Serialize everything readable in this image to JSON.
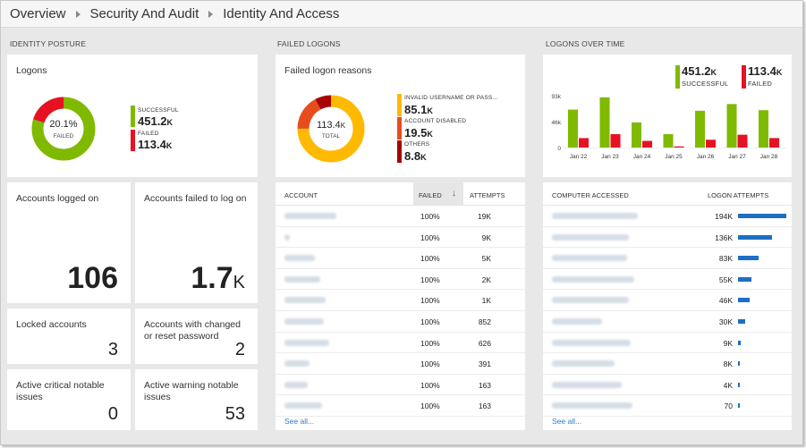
{
  "breadcrumb": [
    "Overview",
    "Security And Audit",
    "Identity And Access"
  ],
  "sections": {
    "identity": "IDENTITY POSTURE",
    "failed": "FAILED LOGONS",
    "overtime": "LOGONS OVER TIME"
  },
  "logons": {
    "title": "Logons",
    "center_value": "20.1%",
    "center_label": "FAILED",
    "successful_label": "SUCCESSFUL",
    "successful_value": "451.2",
    "successful_unit": "K",
    "failed_label": "FAILED",
    "failed_value": "113.4",
    "failed_unit": "K",
    "colors": {
      "successful": "#7fba00",
      "failed": "#e81123"
    },
    "failed_fraction": 0.201
  },
  "kpis": {
    "logged_on_title": "Accounts logged on",
    "logged_on_value": "106",
    "failed_log_on_title": "Accounts failed to log on",
    "failed_log_on_value": "1.7",
    "failed_log_on_unit": "K",
    "locked_title": "Locked accounts",
    "locked_value": "3",
    "changed_title": "Accounts with changed or reset password",
    "changed_value": "2",
    "critical_title": "Active critical notable issues",
    "critical_value": "0",
    "warning_title": "Active warning notable issues",
    "warning_value": "53"
  },
  "failed_reasons": {
    "title": "Failed logon reasons",
    "center_value": "113.4",
    "center_unit": "K",
    "center_label": "TOTAL",
    "items": [
      {
        "label": "INVALID USERNAME OR PASS...",
        "value": "85.1",
        "unit": "K",
        "color": "#ffb900",
        "amount": 85.1
      },
      {
        "label": "ACCOUNT DISABLED",
        "value": "19.5",
        "unit": "K",
        "color": "#e74c1c",
        "amount": 19.5
      },
      {
        "label": "OTHERS",
        "value": "8.8",
        "unit": "K",
        "color": "#a80000",
        "amount": 8.8
      }
    ]
  },
  "accounts_table": {
    "col_account": "ACCOUNT",
    "col_failed": "FAILED",
    "col_attempts": "ATTEMPTS",
    "rows": [
      {
        "failed": "100%",
        "attempts": "19K"
      },
      {
        "failed": "100%",
        "attempts": "9K"
      },
      {
        "failed": "100%",
        "attempts": "5K"
      },
      {
        "failed": "100%",
        "attempts": "2K"
      },
      {
        "failed": "100%",
        "attempts": "1K"
      },
      {
        "failed": "100%",
        "attempts": "852"
      },
      {
        "failed": "100%",
        "attempts": "626"
      },
      {
        "failed": "100%",
        "attempts": "391"
      },
      {
        "failed": "100%",
        "attempts": "163"
      },
      {
        "failed": "100%",
        "attempts": "163"
      }
    ],
    "see_all": "See all..."
  },
  "overtime": {
    "successful_value": "451.2",
    "successful_unit": "K",
    "successful_label": "SUCCESSFUL",
    "failed_value": "113.4",
    "failed_unit": "K",
    "failed_label": "FAILED"
  },
  "chart_data": {
    "type": "bar",
    "categories": [
      "Jan 22",
      "Jan 23",
      "Jan 24",
      "Jan 25",
      "Jan 26",
      "Jan 27",
      "Jan 28"
    ],
    "series": [
      {
        "name": "SUCCESSFUL",
        "color": "#7fba00",
        "values": [
          68,
          90,
          45,
          24,
          66,
          78,
          67
        ]
      },
      {
        "name": "FAILED",
        "color": "#e81123",
        "values": [
          17,
          24,
          12,
          2,
          14,
          23,
          17
        ]
      }
    ],
    "yticks": [
      "0",
      "46k",
      "93k"
    ],
    "ylim": [
      0,
      93
    ],
    "xlabel": "",
    "ylabel": "",
    "title": ""
  },
  "computers_table": {
    "col_computer": "COMPUTER ACCESSED",
    "col_attempts": "LOGON ATTEMPTS",
    "rows": [
      {
        "attempts": "194K",
        "amount": 194
      },
      {
        "attempts": "136K",
        "amount": 136
      },
      {
        "attempts": "83K",
        "amount": 83
      },
      {
        "attempts": "55K",
        "amount": 55
      },
      {
        "attempts": "46K",
        "amount": 46
      },
      {
        "attempts": "30K",
        "amount": 30
      },
      {
        "attempts": "9K",
        "amount": 9
      },
      {
        "attempts": "8K",
        "amount": 8
      },
      {
        "attempts": "4K",
        "amount": 4
      },
      {
        "attempts": "70",
        "amount": 0.07
      }
    ],
    "see_all": "See all..."
  }
}
